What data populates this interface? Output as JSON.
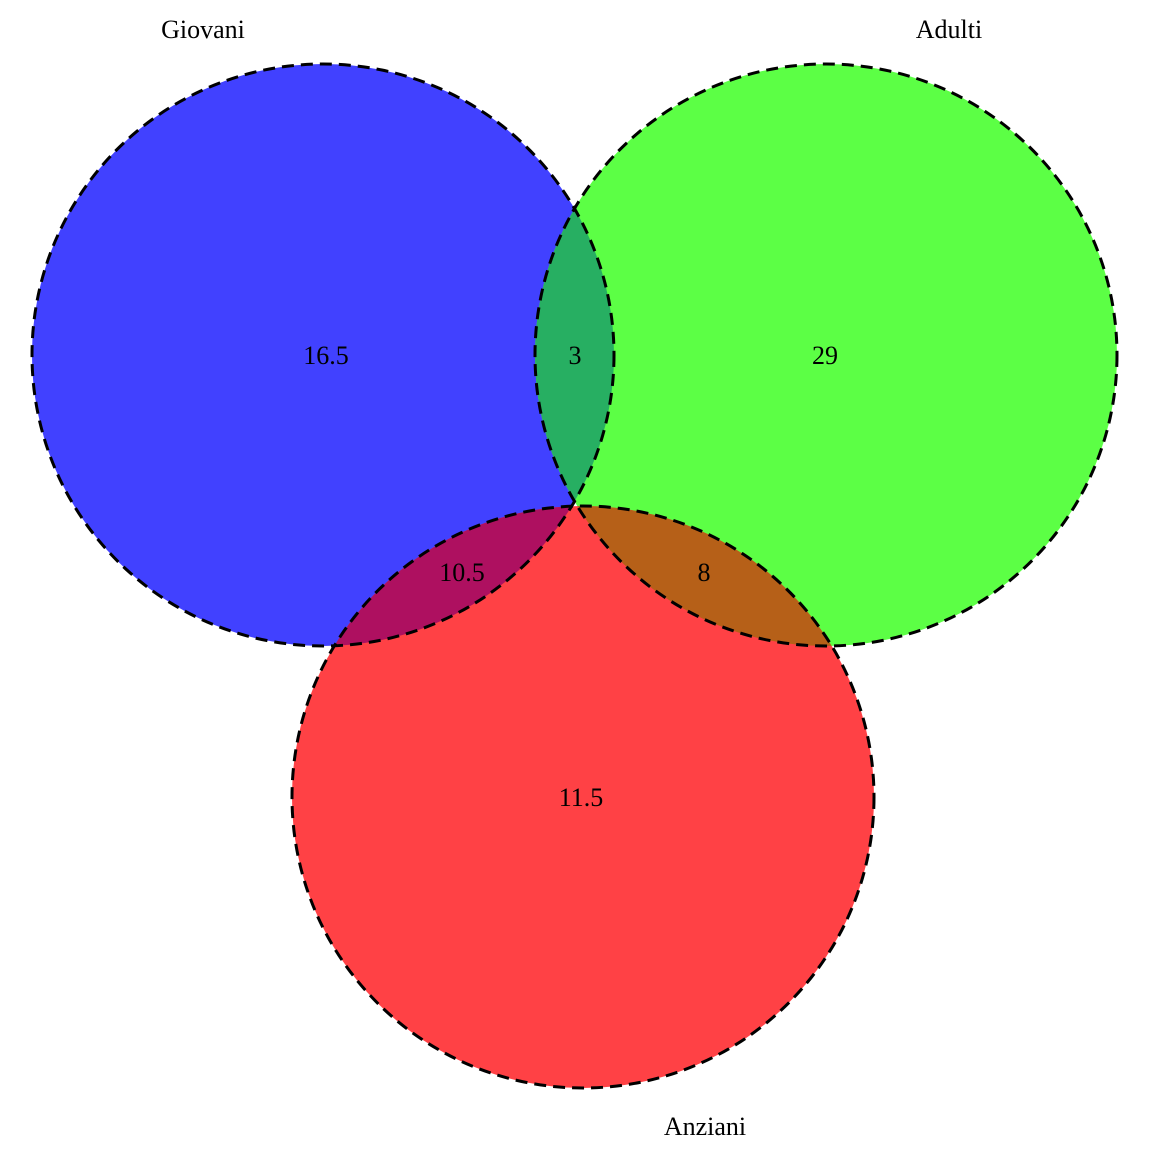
{
  "diagram": {
    "type": "venn",
    "sets": [
      {
        "id": "giovani",
        "label": "Giovani",
        "color": "#4141FF"
      },
      {
        "id": "adulti",
        "label": "Adulti",
        "color": "#5CFF45"
      },
      {
        "id": "anziani",
        "label": "Anziani",
        "color": "#FF4145"
      }
    ],
    "regions": {
      "giovani_only": "16.5",
      "giovani_adulti": "3",
      "adulti_only": "29",
      "giovani_anziani": "10.5",
      "adulti_anziani": "8",
      "anziani_only": "11.5"
    },
    "overlap_colors": {
      "giovani_adulti": "#27AF62",
      "giovani_anziani": "#AE1060",
      "adulti_anziani": "#B66018",
      "all": "#7A3A40"
    }
  }
}
